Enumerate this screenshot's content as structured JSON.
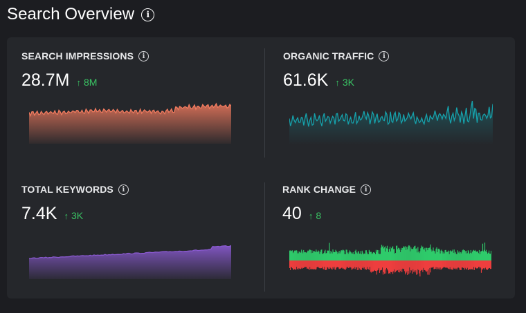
{
  "header": {
    "title": "Search Overview",
    "info_icon": "info-icon"
  },
  "cards": [
    {
      "title": "SEARCH IMPRESSIONS",
      "value": "28.7M",
      "delta": "8M",
      "delta_direction": "up",
      "color": "#f07a5e",
      "type": "area-smooth"
    },
    {
      "title": "ORGANIC TRAFFIC",
      "value": "61.6K",
      "delta": "3K",
      "delta_direction": "up",
      "color": "#16a2ac",
      "type": "line-noisy"
    },
    {
      "title": "TOTAL KEYWORDS",
      "value": "7.4K",
      "delta": "3K",
      "delta_direction": "up",
      "color": "#8a5ad0",
      "type": "area-rising"
    },
    {
      "title": "RANK CHANGE",
      "value": "40",
      "delta": "8",
      "delta_direction": "up",
      "colors": {
        "up": "#2fcb6b",
        "down": "#ee3e3e"
      },
      "type": "diverging"
    }
  ],
  "colors": {
    "background": "#1c1d21",
    "panel": "#25272b",
    "positive": "#3ac464"
  }
}
